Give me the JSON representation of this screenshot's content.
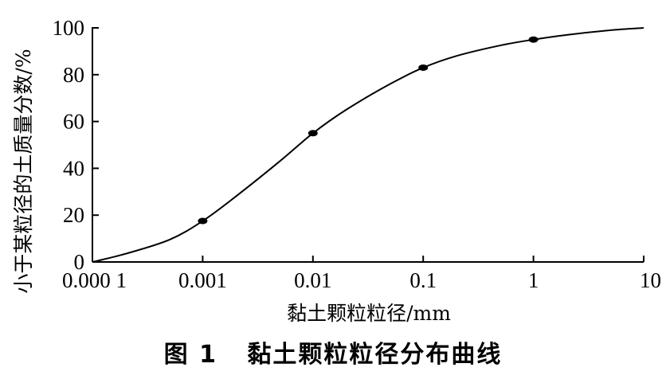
{
  "caption": "图 1   黏土颗粒粒径分布曲线",
  "chart_data": {
    "type": "line",
    "title": "",
    "xlabel": "黏土颗粒粒径/mm",
    "ylabel": "小于某粒径的土质量分数/%",
    "x_scale": "log",
    "xlim": [
      0.0001,
      10
    ],
    "ylim": [
      0,
      100
    ],
    "x_ticks": [
      0.0001,
      0.001,
      0.01,
      0.1,
      1,
      10
    ],
    "x_tick_labels": [
      "0.000 1",
      "0.001",
      "0.01",
      "0.1",
      "1",
      "10"
    ],
    "y_ticks": [
      0,
      20,
      40,
      60,
      80,
      100
    ],
    "y_tick_labels": [
      "0",
      "20",
      "40",
      "60",
      "80",
      "100"
    ],
    "grid": false,
    "legend": "none",
    "series": [
      {
        "x": [
          0.0001,
          0.0002,
          0.0005,
          0.001,
          0.002,
          0.005,
          0.01,
          0.02,
          0.05,
          0.1,
          0.2,
          0.5,
          1,
          2,
          5,
          10
        ],
        "y": [
          0,
          3.5,
          9.5,
          17.5,
          28,
          43,
          55,
          65,
          76,
          83,
          88,
          92.5,
          95,
          97,
          99,
          100
        ]
      }
    ],
    "markers": {
      "x": [
        0.001,
        0.01,
        0.1,
        1
      ],
      "y": [
        17.5,
        55,
        83,
        95
      ]
    }
  }
}
